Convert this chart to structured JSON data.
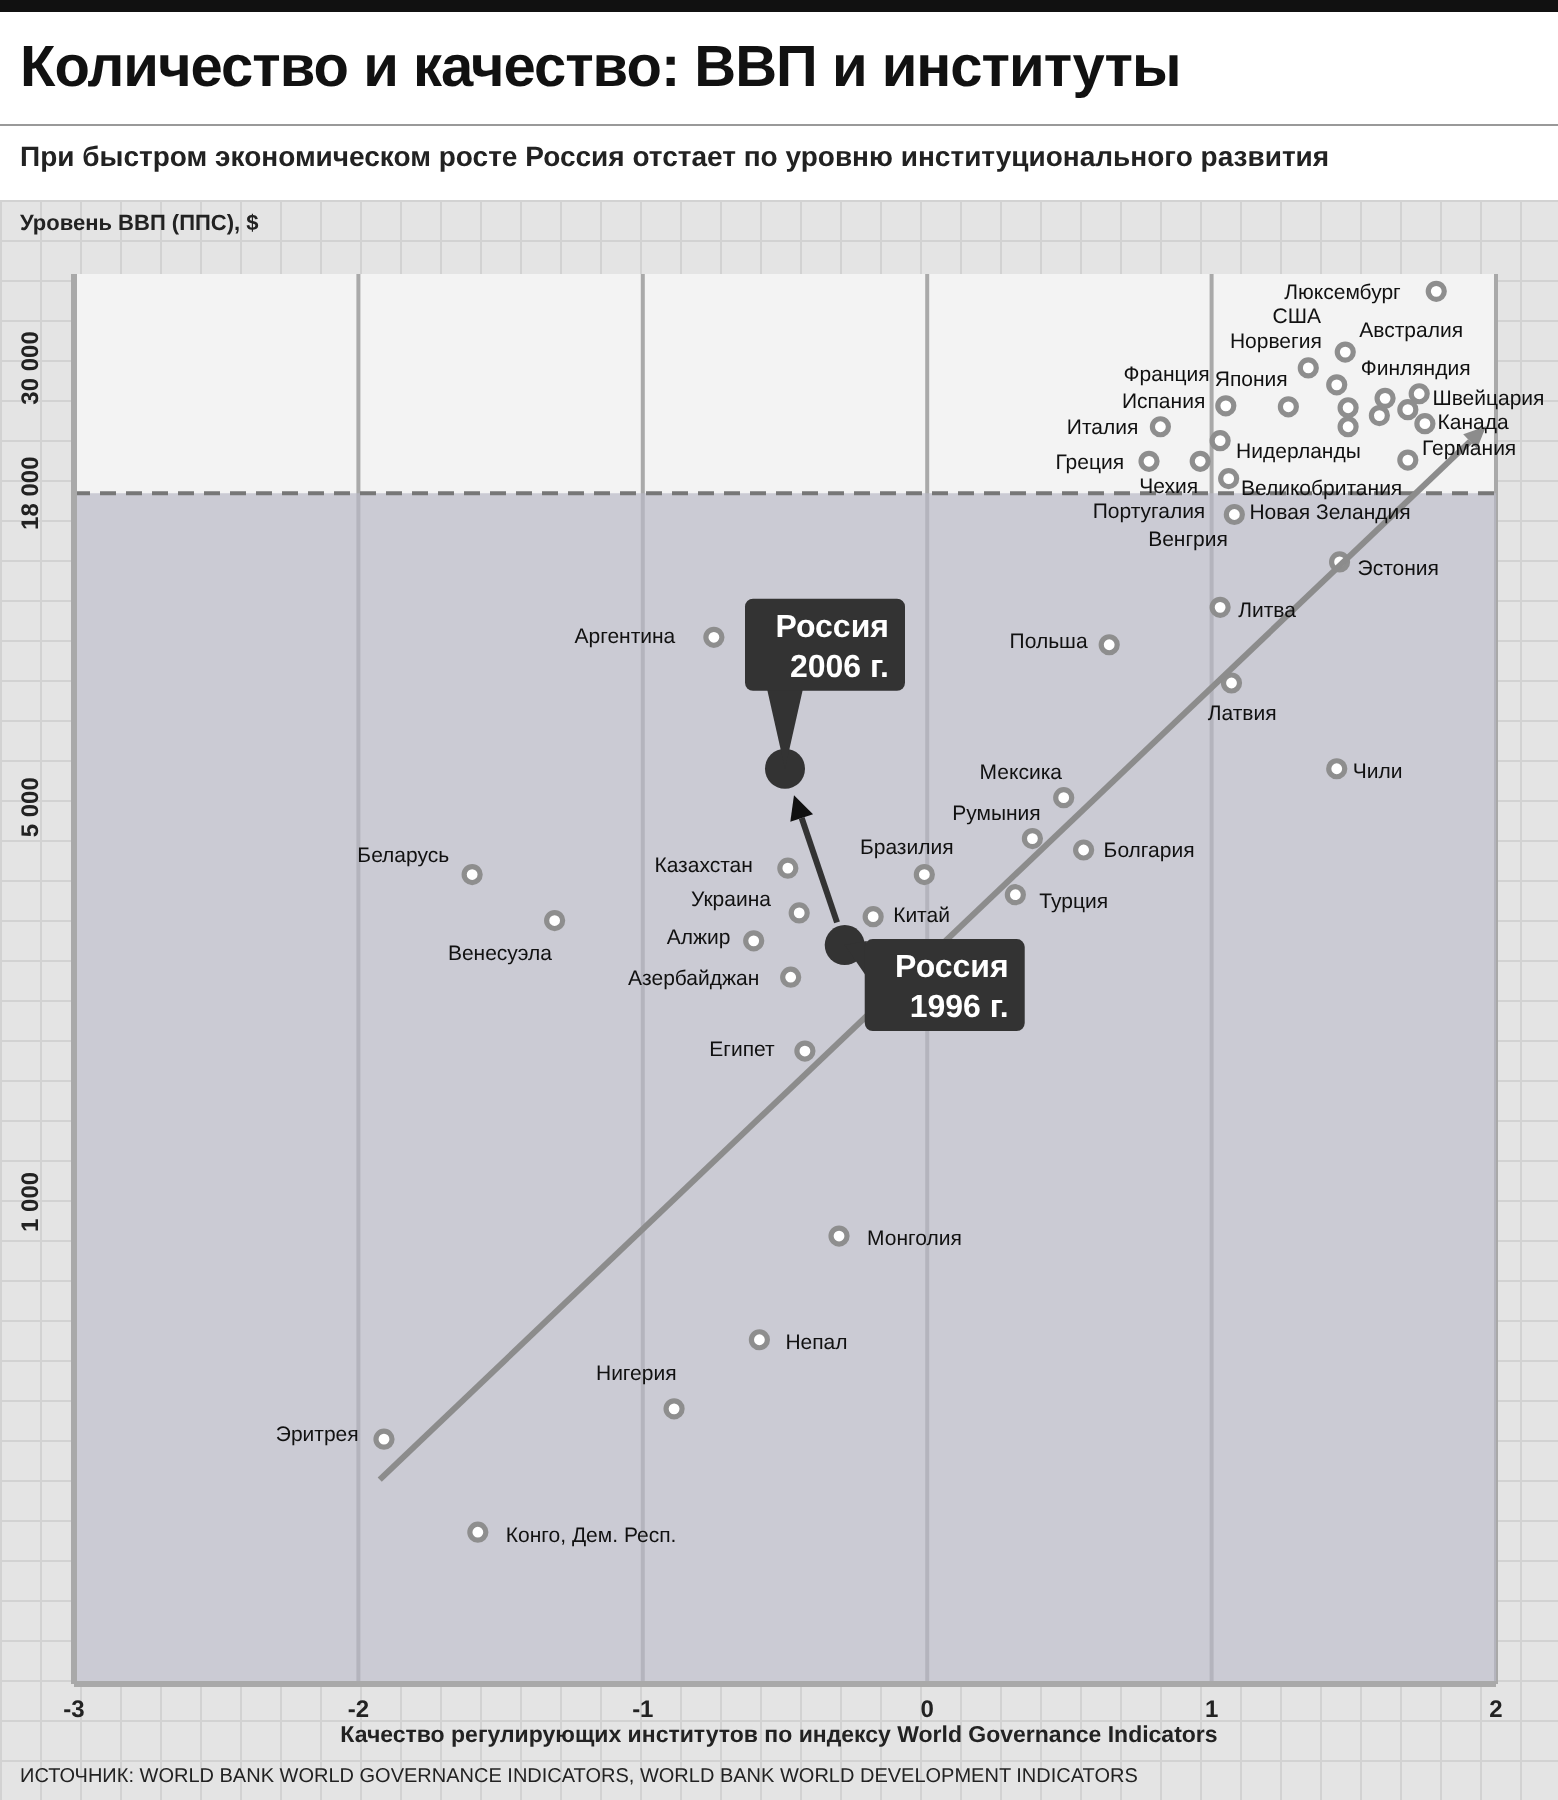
{
  "chart_data": {
    "type": "scatter",
    "title": "Количество и качество: ВВП и институты",
    "subtitle": "При быстром экономическом росте Россия отстает по уровню институционального развития",
    "xlabel": "Качество регулирующих институтов по индексу World Governance Indicators",
    "ylabel": "Уровень ВВП (ППС), $",
    "xlim": [
      -3,
      2
    ],
    "xticks": [
      -3,
      -2,
      -1,
      0,
      1,
      2
    ],
    "ylim": [
      140,
      44000
    ],
    "yticks": [
      {
        "value": 1000,
        "label": "1 000"
      },
      {
        "value": 5000,
        "label": "5 000"
      },
      {
        "value": 18000,
        "label": "18 000"
      },
      {
        "value": 30000,
        "label": "30 000"
      }
    ],
    "log": "y",
    "grid": "x",
    "marker": "circle",
    "ref_lines": [
      {
        "axis": "y",
        "value": 18000,
        "line_style": "dashed",
        "color": "#777777"
      }
    ],
    "bands": [
      {
        "axis": "y",
        "from": 140,
        "to": 18000,
        "color": "#b9b9c6"
      }
    ],
    "series": [
      {
        "color": "#8e8e8e",
        "x": [
          1.79,
          1.47,
          1.73,
          1.34,
          1.44,
          1.48,
          1.69,
          1.27,
          1.59,
          1.05,
          0.82,
          1.48,
          1.03,
          1.75,
          0.78,
          0.96,
          1.06,
          1.69,
          1.61,
          1.08,
          1.45,
          1.03,
          1.07,
          0.64,
          1.44,
          0.48,
          0.37,
          0.55,
          -0.01,
          0.31,
          -0.19,
          -0.49,
          -0.45,
          -0.61,
          -0.48,
          -0.43,
          -0.75,
          -1.6,
          -1.31,
          -0.31,
          -0.59,
          -0.89,
          -1.91,
          -1.58
        ],
        "values": [
          41000,
          32000,
          27000,
          30000,
          28000,
          25500,
          25300,
          25600,
          24700,
          25700,
          23600,
          23600,
          22300,
          23900,
          20500,
          20500,
          19100,
          20600,
          26500,
          16500,
          13600,
          11300,
          8300,
          9700,
          5850,
          5200,
          4400,
          4200,
          3800,
          3500,
          3200,
          3900,
          3250,
          2900,
          2500,
          1850,
          10000,
          3800,
          3150,
          870,
          570,
          430,
          380,
          260
        ]
      },
      {
        "color": "#333333",
        "x": [
          -0.29,
          -0.5
        ],
        "values": [
          2850,
          5850
        ]
      }
    ],
    "annotations": [
      {
        "text": "Россия\n2006 г.",
        "x": -0.5,
        "y": 5850
      },
      {
        "text": "Россия\n1996 г.",
        "x": -0.29,
        "y": 2850
      },
      {
        "text": "Люксембург",
        "x": 1.79,
        "y": 41000
      },
      {
        "text": "Австралия",
        "x": 1.47,
        "y": 32000
      },
      {
        "text": "Канада",
        "x": 1.73,
        "y": 27000
      },
      {
        "text": "США",
        "x": 1.34,
        "y": 30000
      },
      {
        "text": "Норвегия",
        "x": 1.44,
        "y": 28000
      },
      {
        "text": "Финляндия",
        "x": 1.48,
        "y": 25500
      },
      {
        "text": "Швейцария",
        "x": 1.69,
        "y": 25300
      },
      {
        "text": "Япония",
        "x": 1.27,
        "y": 25600
      },
      {
        "text": "Великобритания",
        "x": 1.59,
        "y": 24700
      },
      {
        "text": "Франция",
        "x": 1.05,
        "y": 25700
      },
      {
        "text": "Италия",
        "x": 0.82,
        "y": 23600
      },
      {
        "text": "Нидерланды",
        "x": 1.48,
        "y": 23600
      },
      {
        "text": "Испания",
        "x": 1.03,
        "y": 22300
      },
      {
        "text": "Германия",
        "x": 1.75,
        "y": 23900
      },
      {
        "text": "Греция",
        "x": 0.78,
        "y": 20500
      },
      {
        "text": "Чехия",
        "x": 0.96,
        "y": 20500
      },
      {
        "text": "Португалия",
        "x": 1.06,
        "y": 19100
      },
      {
        "text": "Новая Зеландия",
        "x": 1.69,
        "y": 20600
      },
      {
        "text": "Венгрия",
        "x": 1.08,
        "y": 16500
      },
      {
        "text": "Эстония",
        "x": 1.45,
        "y": 13600
      },
      {
        "text": "Литва",
        "x": 1.03,
        "y": 11300
      },
      {
        "text": "Латвия",
        "x": 1.07,
        "y": 8300
      },
      {
        "text": "Польша",
        "x": 0.64,
        "y": 9700
      },
      {
        "text": "Чили",
        "x": 1.44,
        "y": 5850
      },
      {
        "text": "Мексика",
        "x": 0.48,
        "y": 5200
      },
      {
        "text": "Румыния",
        "x": 0.37,
        "y": 4400
      },
      {
        "text": "Болгария",
        "x": 0.55,
        "y": 4200
      },
      {
        "text": "Бразилия",
        "x": -0.01,
        "y": 3800
      },
      {
        "text": "Турция",
        "x": 0.31,
        "y": 3500
      },
      {
        "text": "Китай",
        "x": -0.19,
        "y": 3200
      },
      {
        "text": "Казахстан",
        "x": -0.49,
        "y": 3900
      },
      {
        "text": "Украина",
        "x": -0.45,
        "y": 3250
      },
      {
        "text": "Алжир",
        "x": -0.61,
        "y": 2900
      },
      {
        "text": "Азербайджан",
        "x": -0.48,
        "y": 2500
      },
      {
        "text": "Египет",
        "x": -0.43,
        "y": 1850
      },
      {
        "text": "Аргентина",
        "x": -0.75,
        "y": 10000
      },
      {
        "text": "Беларусь",
        "x": -1.6,
        "y": 3800
      },
      {
        "text": "Венесуэла",
        "x": -1.31,
        "y": 3150
      },
      {
        "text": "Монголия",
        "x": -0.31,
        "y": 870
      },
      {
        "text": "Непал",
        "x": -0.59,
        "y": 570
      },
      {
        "text": "Нигерия",
        "x": -0.89,
        "y": 430
      },
      {
        "text": "Эритрея",
        "x": -1.91,
        "y": 380
      },
      {
        "text": "Конго, Дем. Респ.",
        "x": -1.58,
        "y": 260
      },
      "ИСТОЧНИК: WORLD BANK WORLD GOVERNANCE INDICATORS, WORLD BANK WORLD DEVELOPMENT INDICATORS"
    ]
  }
}
